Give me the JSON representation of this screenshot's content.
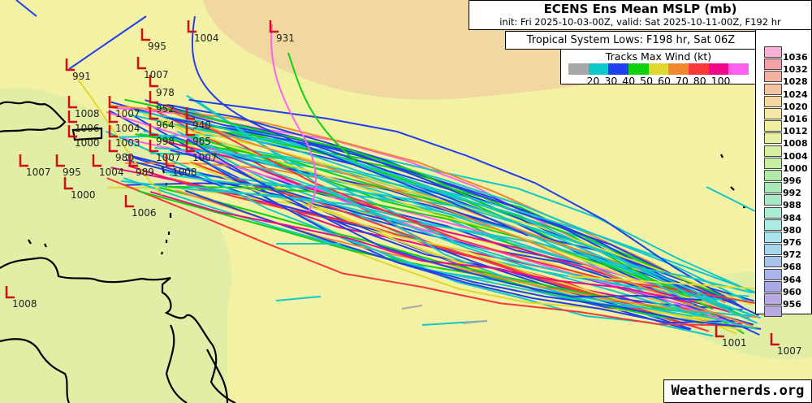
{
  "header": {
    "title": "ECENS Ens Mean MSLP (mb)",
    "subtitle": "init: Fri 2025-10-03-00Z, valid: Sat 2025-10-11-00Z, F192 hr"
  },
  "tropical_lows": {
    "label": "Tropical System Lows: F198 hr, Sat 06Z",
    "marker_color": "#d01010",
    "values": [
      "995",
      "1004",
      "931",
      "991",
      "1007",
      "978",
      "952",
      "1008",
      "1007",
      "1004",
      "964",
      "940",
      "1006",
      "1000",
      "998",
      "1003",
      "965",
      "1007",
      "995",
      "1007",
      "1004",
      "980",
      "1007",
      "989",
      "1008",
      "1000",
      "1006",
      "1008",
      "1001",
      "1007"
    ]
  },
  "wind_legend": {
    "title": "Tracks Max Wind (kt)",
    "colors": [
      "#a8a8a8",
      "#10c8c8",
      "#2040f0",
      "#10d010",
      "#e0d830",
      "#f08830",
      "#f83838",
      "#f00888",
      "#ff60f0"
    ],
    "labels": "20 30 40 50 60 70 80 100"
  },
  "pressure_colorbar": {
    "levels": [
      "1036",
      "1032",
      "1028",
      "1024",
      "1020",
      "1016",
      "1012",
      "1008",
      "1004",
      "1000",
      "996",
      "992",
      "988",
      "984",
      "980",
      "976",
      "972",
      "968",
      "964",
      "960",
      "956"
    ],
    "colors": [
      "#f8b0d8",
      "#f4a0a8",
      "#f4b0a0",
      "#f4c4a0",
      "#f4d8a0",
      "#f4e8a4",
      "#f0f0a0",
      "#e4f0a0",
      "#d4f0a0",
      "#c4f0a0",
      "#b0eca8",
      "#a8e8b4",
      "#a8e8c4",
      "#a8ecd4",
      "#a8ece4",
      "#a8e4ec",
      "#a8d4ec",
      "#a8c4ec",
      "#a8b4ec",
      "#a8a8e8",
      "#b8a8e4"
    ]
  },
  "map_colors": {
    "background": "#f3f1a4",
    "high_region": "#f0d8a0",
    "low_region": "#e2eea6",
    "land_outline": "#000000"
  },
  "watermark": "Weathernerds.org"
}
